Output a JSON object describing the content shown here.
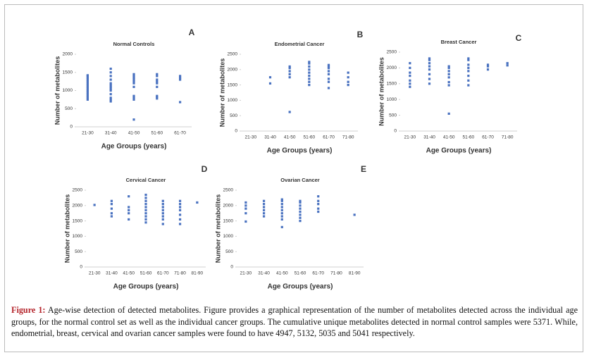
{
  "chart_data": [
    {
      "type": "scatter",
      "label": "A",
      "title": "Normal Controls",
      "xlabel": "Age Groups (years)",
      "ylabel": "Number of metabolites",
      "color": "#4a72c0",
      "categories": [
        "21-30",
        "31-40",
        "41-50",
        "51-60",
        "61-70"
      ],
      "values": [
        [
          750,
          800,
          850,
          900,
          950,
          1000,
          1050,
          1100,
          1150,
          1200,
          1250,
          1300,
          1350,
          1400,
          1420
        ],
        [
          700,
          750,
          800,
          900,
          1000,
          1050,
          1100,
          1150,
          1200,
          1300,
          1400,
          1500,
          1600
        ],
        [
          200,
          750,
          800,
          850,
          1100,
          1200,
          1250,
          1300,
          1350,
          1400,
          1450
        ],
        [
          780,
          820,
          850,
          1100,
          1200,
          1250,
          1300,
          1400,
          1450
        ],
        [
          680,
          1300,
          1350,
          1400
        ]
      ],
      "ylim": [
        0,
        2000
      ],
      "yticks": [
        0,
        500,
        1000,
        1500,
        2000
      ]
    },
    {
      "type": "scatter",
      "label": "B",
      "title": "Endometrial Cancer",
      "xlabel": "Age Groups (years)",
      "ylabel": "Number of metabolites",
      "color": "#4a72c0",
      "categories": [
        "21-30",
        "31-40",
        "41-50",
        "51-60",
        "61-70",
        "71-80"
      ],
      "values": [
        [],
        [
          1550,
          1750
        ],
        [
          620,
          1750,
          1850,
          1950,
          2050,
          2100
        ],
        [
          1500,
          1600,
          1700,
          1800,
          1900,
          2000,
          2100,
          2200,
          2250
        ],
        [
          1400,
          1600,
          1700,
          1850,
          1950,
          2050,
          2100,
          2150
        ],
        [
          1500,
          1600,
          1750,
          1900
        ]
      ],
      "ylim": [
        0,
        2500
      ],
      "yticks": [
        0,
        500,
        1000,
        1500,
        2000,
        2500
      ]
    },
    {
      "type": "scatter",
      "label": "C",
      "title": "Breast Cancer",
      "xlabel": "Age Groups (years)",
      "ylabel": "Number of metabolites",
      "color": "#4a72c0",
      "categories": [
        "21-30",
        "31-40",
        "41-50",
        "51-60",
        "61-70",
        "71-80"
      ],
      "values": [
        [
          1400,
          1500,
          1600,
          1750,
          1850,
          2000,
          2150
        ],
        [
          1500,
          1650,
          1800,
          1950,
          2050,
          2150,
          2250,
          2300
        ],
        [
          550,
          1450,
          1550,
          1700,
          1800,
          1900,
          2000,
          2050
        ],
        [
          1450,
          1600,
          1750,
          1900,
          2000,
          2100,
          2250,
          2300
        ],
        [
          1950,
          2050,
          2100
        ],
        [
          2080,
          2150
        ]
      ],
      "ylim": [
        0,
        2500
      ],
      "yticks": [
        0,
        500,
        1000,
        1500,
        2000,
        2500
      ]
    },
    {
      "type": "scatter",
      "label": "D",
      "title": "Cervical Cancer",
      "xlabel": "Age Groups (years)",
      "ylabel": "Number of metabolites",
      "color": "#4a72c0",
      "categories": [
        "21-30",
        "31-40",
        "41-50",
        "51-60",
        "61-70",
        "71-80",
        "81-90"
      ],
      "values": [
        [
          2020
        ],
        [
          1650,
          1750,
          1900,
          2050,
          2150
        ],
        [
          1550,
          1750,
          1850,
          1950,
          2300
        ],
        [
          1450,
          1550,
          1650,
          1750,
          1850,
          1950,
          2050,
          2150,
          2250,
          2350
        ],
        [
          1400,
          1550,
          1650,
          1750,
          1850,
          1950,
          2050,
          2150
        ],
        [
          1400,
          1550,
          1700,
          1850,
          1950,
          2050,
          2150
        ],
        [
          2100
        ]
      ],
      "ylim": [
        0,
        2500
      ],
      "yticks": [
        0,
        500,
        1000,
        1500,
        2000,
        2500
      ]
    },
    {
      "type": "scatter",
      "label": "E",
      "title": "Ovarian Cancer",
      "xlabel": "Age Groups (years)",
      "ylabel": "Number of metabolites",
      "color": "#4a72c0",
      "categories": [
        "21-30",
        "31-40",
        "41-50",
        "51-60",
        "61-70",
        "71-80",
        "81-90"
      ],
      "values": [
        [
          1480,
          1750,
          1900,
          2000,
          2100
        ],
        [
          1650,
          1750,
          1850,
          1950,
          2050,
          2150
        ],
        [
          1300,
          1550,
          1650,
          1750,
          1850,
          1950,
          2050,
          2150,
          2200
        ],
        [
          1500,
          1600,
          1700,
          1800,
          1900,
          2000,
          2100,
          2150
        ],
        [
          1800,
          1900,
          2050,
          2150,
          2300
        ],
        [],
        [
          1700
        ]
      ],
      "ylim": [
        0,
        2500
      ],
      "yticks": [
        0,
        500,
        1000,
        1500,
        2000,
        2500
      ]
    }
  ],
  "caption": {
    "label": "Figure 1:",
    "text": "Age-wise detection of detected metabolites. Figure provides a graphical representation of the number of metabolites detected across the individual age groups, for the normal control set as well as the individual cancer groups. The cumulative unique metabolites detected in normal control samples were 5371. While, endometrial, breast, cervical and ovarian cancer samples were found to have 4947, 5132, 5035 and 5041 respectively."
  }
}
